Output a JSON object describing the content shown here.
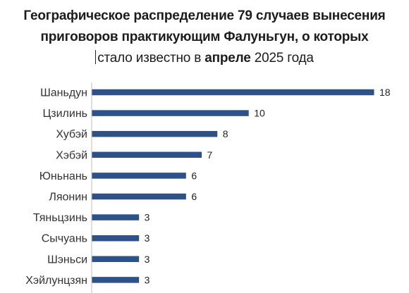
{
  "chart_data": {
    "type": "bar",
    "orientation": "horizontal",
    "title_lines": [
      "Географическое распределение 79 случаев вынесения",
      "приговоров практикующим Фалуньгун, о которых"
    ],
    "title_line3": {
      "part1": "стало известно в ",
      "part2": "апреле",
      "part3": " 2025 года"
    },
    "categories": [
      "Шаньдун",
      "Цзилинь",
      "Хубэй",
      "Хэбэй",
      "Юньнань",
      "Ляонин",
      "Тяньцзинь",
      "Сычуань",
      "Шэньси",
      "Хэйлунцзян"
    ],
    "values": [
      18,
      10,
      8,
      7,
      6,
      6,
      3,
      3,
      3,
      3
    ],
    "xlim": [
      0,
      18
    ],
    "bar_color": "#2e5288",
    "axis_color": "#bfbfbf",
    "grid": false,
    "legend": "none",
    "data_labels": true
  }
}
